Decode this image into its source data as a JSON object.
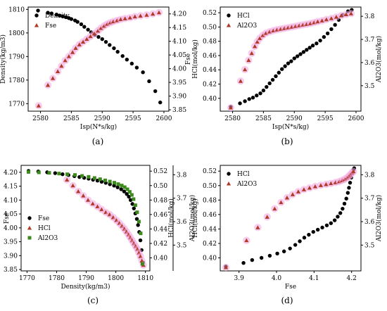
{
  "colors": {
    "dot": "#000000",
    "tri": "#b03a28",
    "sq": "#3d8a1c",
    "glow": "#f3a6e0"
  },
  "chart_data": [
    {
      "id": "a",
      "type": "scatter",
      "caption": "(a)",
      "xlabel": "Isp(N*s/kg)",
      "ylabel": "Density(kg/m3)",
      "y2label": "Fse",
      "xlim": [
        2578,
        2600.8
      ],
      "ylim": [
        1766.8,
        1811
      ],
      "y2lim": [
        3.845,
        4.225
      ],
      "xticks": [
        "2580",
        "2585",
        "2590",
        "2595",
        "2600"
      ],
      "yticks": [
        "1770",
        "1780",
        "1790",
        "1800",
        "1810"
      ],
      "y2ticks": [
        "3.85",
        "3.90",
        "3.95",
        "4.00",
        "4.05",
        "4.10",
        "4.15",
        "4.20"
      ],
      "xtickvals": [
        2580,
        2585,
        2590,
        2595,
        2600
      ],
      "ytickvals": [
        1770,
        1780,
        1790,
        1800,
        1810
      ],
      "y2tickvals": [
        3.85,
        3.9,
        3.95,
        4.0,
        4.05,
        4.1,
        4.15,
        4.2
      ],
      "legend": {
        "position": "upper-left",
        "entries": [
          "Density",
          "Fse"
        ]
      },
      "series": [
        {
          "name": "Density",
          "axis": "y",
          "marker": "circle",
          "x": [
            2579.6,
            2581.2,
            2581.8,
            2582.6,
            2583.1,
            2583.6,
            2584.1,
            2584.6,
            2585.0,
            2585.6,
            2586.0,
            2586.6,
            2587.1,
            2587.7,
            2588.2,
            2588.8,
            2589.4,
            2590.0,
            2590.6,
            2591.2,
            2591.9,
            2592.5,
            2593.3,
            2594.0,
            2594.8,
            2595.6,
            2596.6,
            2597.6,
            2598.6,
            2599.4
          ],
          "y": [
            1809.5,
            1808.6,
            1808.3,
            1807.8,
            1807.4,
            1807.0,
            1806.7,
            1806.3,
            1805.9,
            1805.3,
            1804.7,
            1803.7,
            1802.6,
            1801.4,
            1800.3,
            1799.2,
            1798.3,
            1797.4,
            1796.2,
            1794.9,
            1793.5,
            1792.0,
            1790.2,
            1788.7,
            1787.0,
            1785.3,
            1783.3,
            1779.5,
            1775.3,
            1770.5
          ]
        },
        {
          "name": "Fse",
          "axis": "y2",
          "marker": "triangle",
          "x": [
            2579.7,
            2581.2,
            2582.0,
            2582.8,
            2583.4,
            2584.0,
            2584.6,
            2585.2,
            2585.7,
            2586.3,
            2586.9,
            2587.5,
            2588.1,
            2588.7,
            2589.3,
            2589.8,
            2590.3,
            2590.8,
            2591.3,
            2591.8,
            2592.4,
            2593.0,
            2593.7,
            2594.5,
            2595.3,
            2596.2,
            2597.2,
            2598.2,
            2599.2
          ],
          "y": [
            3.865,
            3.94,
            3.965,
            3.99,
            4.01,
            4.03,
            4.045,
            4.06,
            4.075,
            4.088,
            4.098,
            4.108,
            4.118,
            4.128,
            4.138,
            4.148,
            4.156,
            4.163,
            4.168,
            4.172,
            4.176,
            4.18,
            4.183,
            4.186,
            4.19,
            4.193,
            4.196,
            4.2,
            4.205
          ]
        }
      ]
    },
    {
      "id": "b",
      "type": "scatter",
      "caption": "(b)",
      "xlabel": "Isp(N*s/kg)",
      "ylabel": "HCl(mol/kg)",
      "y2label": "Al2O3(mol/kg)",
      "xlim": [
        2578,
        2600.8
      ],
      "ylim": [
        0.382,
        0.528
      ],
      "y2lim": [
        3.39,
        3.84
      ],
      "xticks": [
        "2580",
        "2585",
        "2590",
        "2595",
        "2600"
      ],
      "yticks": [
        "0.40",
        "0.42",
        "0.44",
        "0.46",
        "0.48",
        "0.50",
        "0.52"
      ],
      "y2ticks": [
        "3.5",
        "3.6",
        "3.7",
        "3.8"
      ],
      "xtickvals": [
        2580,
        2585,
        2590,
        2595,
        2600
      ],
      "ytickvals": [
        0.4,
        0.42,
        0.44,
        0.46,
        0.48,
        0.5,
        0.52
      ],
      "y2tickvals": [
        3.5,
        3.6,
        3.7,
        3.8
      ],
      "legend": {
        "position": "upper-left",
        "entries": [
          "HCl",
          "Al2O3"
        ]
      },
      "series": [
        {
          "name": "HCl",
          "axis": "y",
          "marker": "circle",
          "x": [
            2579.7,
            2581.2,
            2582.0,
            2582.7,
            2583.3,
            2583.9,
            2584.5,
            2585.0,
            2585.5,
            2586.0,
            2586.5,
            2587.0,
            2587.5,
            2588.0,
            2588.5,
            2589.0,
            2589.5,
            2590.0,
            2590.5,
            2591.0,
            2591.5,
            2592.0,
            2592.5,
            2593.0,
            2593.6,
            2594.2,
            2594.8,
            2595.4,
            2596.0,
            2596.6,
            2597.2,
            2597.9,
            2598.7,
            2599.3
          ],
          "y": [
            0.388,
            0.393,
            0.396,
            0.399,
            0.401,
            0.404,
            0.407,
            0.411,
            0.416,
            0.421,
            0.426,
            0.431,
            0.436,
            0.441,
            0.445,
            0.449,
            0.452,
            0.456,
            0.459,
            0.462,
            0.465,
            0.468,
            0.471,
            0.474,
            0.477,
            0.481,
            0.486,
            0.491,
            0.497,
            0.503,
            0.51,
            0.517,
            0.522,
            0.524
          ]
        },
        {
          "name": "Al2O3",
          "axis": "y2",
          "marker": "triangle",
          "x": [
            2579.7,
            2581.3,
            2582.0,
            2582.6,
            2583.1,
            2583.6,
            2584.0,
            2584.4,
            2584.9,
            2585.4,
            2586.0,
            2586.6,
            2587.2,
            2587.8,
            2588.4,
            2589.0,
            2589.6,
            2590.2,
            2590.8,
            2591.4,
            2592.0,
            2592.6,
            2593.2,
            2593.8,
            2594.5,
            2595.2,
            2596.0,
            2596.8,
            2597.6,
            2598.4,
            2599.2
          ],
          "y": [
            3.405,
            3.52,
            3.57,
            3.61,
            3.64,
            3.67,
            3.69,
            3.705,
            3.718,
            3.727,
            3.733,
            3.738,
            3.742,
            3.745,
            3.748,
            3.751,
            3.754,
            3.757,
            3.76,
            3.763,
            3.766,
            3.769,
            3.773,
            3.777,
            3.781,
            3.786,
            3.791,
            3.797,
            3.803,
            3.808,
            3.812
          ]
        }
      ]
    },
    {
      "id": "c",
      "type": "scatter",
      "caption": "(c)",
      "xlabel": "Density(kg/m3)",
      "ylabel": "Fse",
      "y2label": "HCl(mol/kg)",
      "y3label": "Al2O3(mol/kg)",
      "xlim": [
        1768,
        1811.5
      ],
      "ylim": [
        3.845,
        4.225
      ],
      "y2lim": [
        0.382,
        0.528
      ],
      "y3lim": [
        3.39,
        3.84
      ],
      "xticks": [
        "1770",
        "1780",
        "1790",
        "1800",
        "1810"
      ],
      "yticks": [
        "3.85",
        "3.90",
        "3.95",
        "4.00",
        "4.05",
        "4.10",
        "4.15",
        "4.20"
      ],
      "y2ticks": [
        "0.40",
        "0.42",
        "0.44",
        "0.46",
        "0.48",
        "0.50",
        "0.52"
      ],
      "y3ticks": [
        "3.5",
        "3.6",
        "3.7",
        "3.8"
      ],
      "xtickvals": [
        1770,
        1780,
        1790,
        1800,
        1810
      ],
      "ytickvals": [
        3.85,
        3.9,
        3.95,
        4.0,
        4.05,
        4.1,
        4.15,
        4.2
      ],
      "y2tickvals": [
        0.4,
        0.42,
        0.44,
        0.46,
        0.48,
        0.5,
        0.52
      ],
      "y3tickvals": [
        3.5,
        3.6,
        3.7,
        3.8
      ],
      "legend": {
        "position": "lower-left",
        "entries": [
          "Fse",
          "HCl",
          "Al2O3"
        ]
      },
      "series": [
        {
          "name": "Fse",
          "axis": "y",
          "marker": "circle",
          "x": [
            1770.5,
            1773.8,
            1776.8,
            1779.5,
            1782.0,
            1784.0,
            1786.0,
            1787.7,
            1789.3,
            1790.8,
            1792.3,
            1793.8,
            1795.2,
            1796.6,
            1798.0,
            1799.4,
            1800.6,
            1801.8,
            1802.8,
            1803.7,
            1804.4,
            1805.0,
            1805.6,
            1806.1,
            1806.6,
            1807.1,
            1807.5,
            1807.9,
            1808.3,
            1808.7,
            1809.2
          ],
          "y": [
            4.205,
            4.203,
            4.2,
            4.197,
            4.193,
            4.19,
            4.186,
            4.183,
            4.18,
            4.177,
            4.173,
            4.17,
            4.166,
            4.162,
            4.157,
            4.152,
            4.146,
            4.139,
            4.131,
            4.122,
            4.112,
            4.1,
            4.086,
            4.07,
            4.052,
            4.032,
            4.01,
            3.985,
            3.955,
            3.92,
            3.875
          ]
        },
        {
          "name": "HCl",
          "axis": "y2",
          "marker": "triangle",
          "x": [
            1783.5,
            1785.5,
            1787.3,
            1789.0,
            1790.6,
            1792.2,
            1793.8,
            1795.2,
            1796.6,
            1797.9,
            1799.1,
            1800.2,
            1801.2,
            1802.1,
            1802.9,
            1803.6,
            1804.3,
            1804.9,
            1805.5,
            1806.1,
            1806.7,
            1807.3,
            1807.8,
            1808.3,
            1808.8,
            1809.3
          ],
          "y": [
            0.508,
            0.5,
            0.492,
            0.486,
            0.48,
            0.475,
            0.471,
            0.467,
            0.463,
            0.46,
            0.456,
            0.452,
            0.448,
            0.444,
            0.44,
            0.436,
            0.432,
            0.428,
            0.424,
            0.42,
            0.416,
            0.412,
            0.407,
            0.402,
            0.396,
            0.39
          ]
        },
        {
          "name": "Al2O3",
          "axis": "y3",
          "marker": "square",
          "x": [
            1770.5,
            1774.0,
            1777.5,
            1780.8,
            1783.6,
            1786.2,
            1788.6,
            1790.8,
            1792.8,
            1794.7,
            1796.4,
            1798.0,
            1799.5,
            1800.8,
            1802.0,
            1803.0,
            1803.9,
            1804.7,
            1805.4,
            1806.0,
            1806.6,
            1807.2,
            1807.8,
            1808.4,
            1809.0
          ],
          "y": [
            3.812,
            3.81,
            3.808,
            3.805,
            3.802,
            3.799,
            3.795,
            3.791,
            3.786,
            3.781,
            3.776,
            3.771,
            3.766,
            3.76,
            3.754,
            3.747,
            3.738,
            3.727,
            3.714,
            3.696,
            3.67,
            3.64,
            3.6,
            3.55,
            3.42
          ]
        }
      ]
    },
    {
      "id": "d",
      "type": "scatter",
      "caption": "(d)",
      "xlabel": "Fse",
      "ylabel": "HCl(mol/kg)",
      "y2label": "Al2O3(mol/kg)",
      "xlim": [
        3.85,
        4.225
      ],
      "ylim": [
        0.382,
        0.528
      ],
      "y2lim": [
        3.39,
        3.84
      ],
      "xticks": [
        "3.9",
        "4.0",
        "4.1",
        "4.2"
      ],
      "yticks": [
        "0.40",
        "0.42",
        "0.44",
        "0.46",
        "0.48",
        "0.50",
        "0.52"
      ],
      "y2ticks": [
        "3.5",
        "3.6",
        "3.7",
        "3.8"
      ],
      "xtickvals": [
        3.9,
        4.0,
        4.1,
        4.2
      ],
      "ytickvals": [
        0.4,
        0.42,
        0.44,
        0.46,
        0.48,
        0.5,
        0.52
      ],
      "y2tickvals": [
        3.5,
        3.6,
        3.7,
        3.8
      ],
      "legend": {
        "position": "upper-left",
        "entries": [
          "HCl",
          "Al2O3"
        ]
      },
      "series": [
        {
          "name": "HCl",
          "axis": "y",
          "marker": "circle",
          "x": [
            3.865,
            3.912,
            3.935,
            3.96,
            3.982,
            4.002,
            4.02,
            4.036,
            4.05,
            4.062,
            4.074,
            4.086,
            4.098,
            4.11,
            4.122,
            4.134,
            4.145,
            4.155,
            4.163,
            4.17,
            4.176,
            4.181,
            4.186,
            4.19,
            4.193,
            4.196,
            4.199,
            4.202,
            4.205,
            4.207
          ],
          "y": [
            0.388,
            0.393,
            0.397,
            0.4,
            0.403,
            0.406,
            0.409,
            0.413,
            0.418,
            0.423,
            0.428,
            0.432,
            0.436,
            0.439,
            0.442,
            0.445,
            0.448,
            0.452,
            0.457,
            0.462,
            0.468,
            0.475,
            0.482,
            0.49,
            0.497,
            0.504,
            0.511,
            0.517,
            0.522,
            0.524
          ]
        },
        {
          "name": "Al2O3",
          "axis": "y2",
          "marker": "triangle",
          "x": [
            3.865,
            3.92,
            3.95,
            3.975,
            3.995,
            4.012,
            4.028,
            4.043,
            4.058,
            4.073,
            4.088,
            4.103,
            4.118,
            4.132,
            4.145,
            4.157,
            4.167,
            4.175,
            4.182,
            4.188,
            4.193,
            4.197,
            4.201,
            4.205
          ],
          "y": [
            3.405,
            3.52,
            3.575,
            3.62,
            3.655,
            3.682,
            3.702,
            3.716,
            3.728,
            3.737,
            3.744,
            3.75,
            3.755,
            3.759,
            3.763,
            3.767,
            3.771,
            3.776,
            3.781,
            3.787,
            3.794,
            3.801,
            3.808,
            3.814
          ]
        }
      ]
    }
  ]
}
